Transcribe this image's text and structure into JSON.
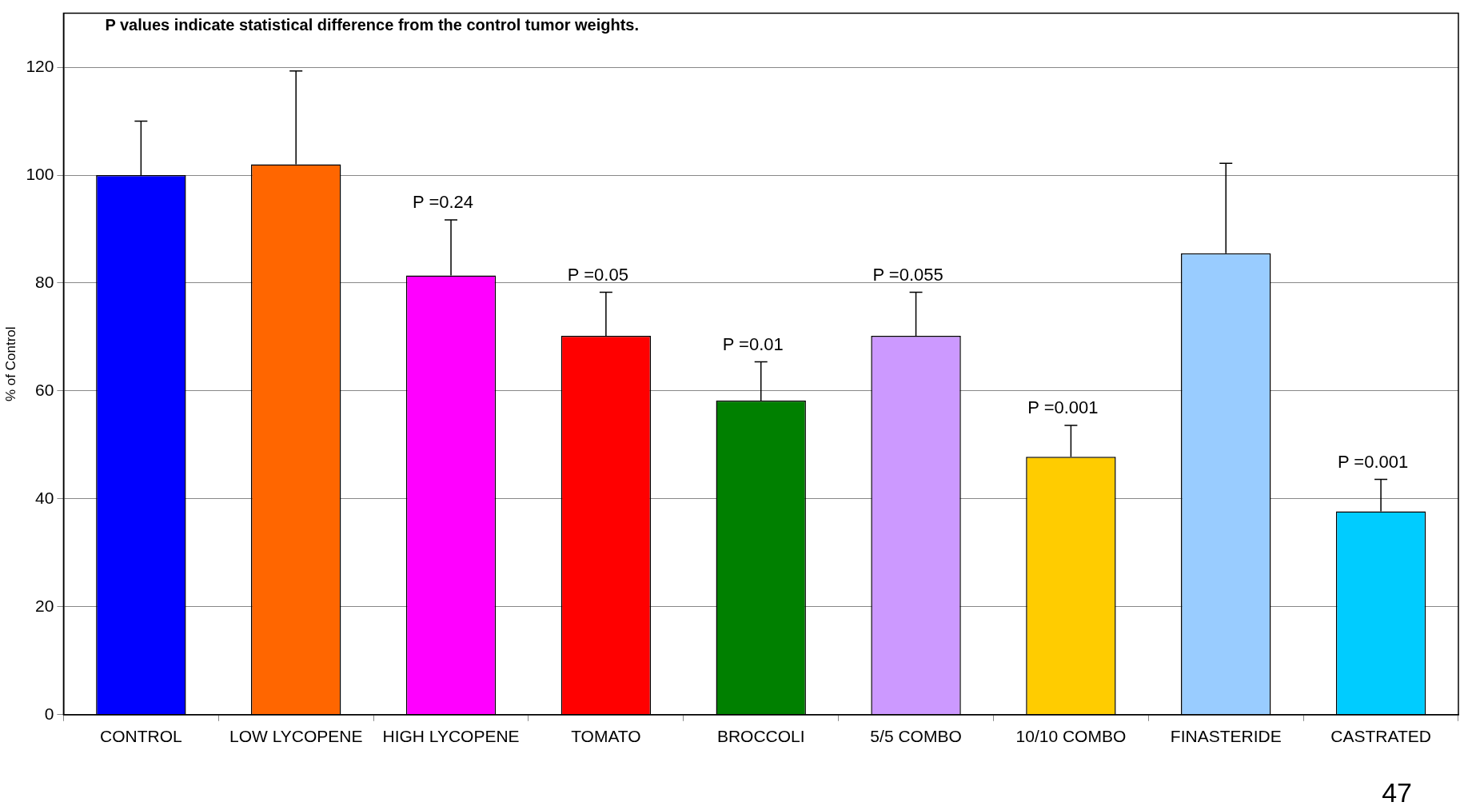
{
  "chart_data": {
    "type": "bar",
    "ylabel": "% of Control",
    "categories": [
      "CONTROL",
      "LOW LYCOPENE",
      "HIGH LYCOPENE",
      "TOMATO",
      "BROCCOLI",
      "5/5 COMBO",
      "10/10 COMBO",
      "FINASTERIDE",
      "CASTRATED"
    ],
    "values": [
      100,
      102,
      81.4,
      70.2,
      58.2,
      70.2,
      47.8,
      85.5,
      37.7
    ],
    "colors": [
      "#0000ff",
      "#ff6600",
      "#ff00ff",
      "#ff0000",
      "#008000",
      "#cc99ff",
      "#ffcc00",
      "#99ccff",
      "#00ccff"
    ],
    "errors": [
      [
        100,
        110
      ],
      [
        102,
        119.3
      ],
      [
        81.4,
        91.7
      ],
      [
        70.2,
        78.3
      ],
      [
        58.2,
        65.4
      ],
      [
        70.2,
        78.3
      ],
      [
        47.8,
        53.6
      ],
      [
        85.5,
        102.2
      ],
      [
        37.7,
        43.6
      ]
    ],
    "ylim": [
      0,
      130
    ],
    "yticks": [
      0,
      20,
      40,
      60,
      80,
      100,
      120
    ],
    "grid": "y",
    "legend": false,
    "annotations": [
      {
        "text": "P =0.24",
        "x": "HIGH LYCOPENE",
        "y": 91.7
      },
      {
        "text": "P =0.05",
        "x": "TOMATO",
        "y": 78.3
      },
      {
        "text": "P =0.01",
        "x": "BROCCOLI",
        "y": 65.4
      },
      {
        "text": "P =0.055",
        "x": "5/5 COMBO",
        "y": 78.3
      },
      {
        "text": "P =0.001",
        "x": "10/10 COMBO",
        "y": 53.6
      },
      {
        "text": "P =0.001",
        "x": "CASTRATED",
        "y": 43.6
      },
      "P values indicate statistical difference from the control tumor weights.",
      "47"
    ]
  }
}
